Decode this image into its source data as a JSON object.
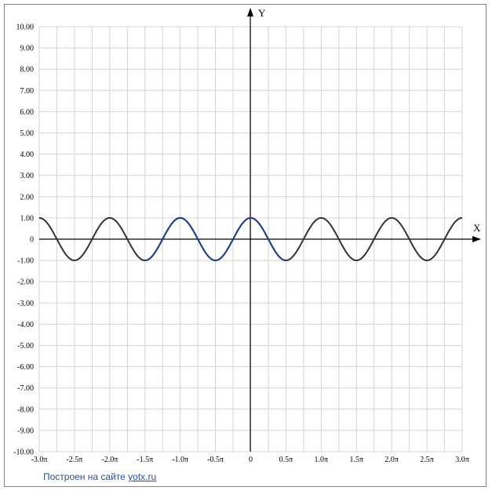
{
  "chart_data": {
    "type": "line",
    "title": "",
    "xlabel": "X",
    "ylabel": "Y",
    "xlim": [
      -3.0,
      3.0
    ],
    "ylim": [
      -10.0,
      10.0
    ],
    "x_unit": "π",
    "grid": true,
    "x_ticks": [
      {
        "value": -3.0,
        "label": "-3.0π"
      },
      {
        "value": -2.5,
        "label": "-2.5π"
      },
      {
        "value": -2.0,
        "label": "-2.0π"
      },
      {
        "value": -1.5,
        "label": "-1.5π"
      },
      {
        "value": -1.0,
        "label": "-1.0π"
      },
      {
        "value": -0.5,
        "label": "-0.5π"
      },
      {
        "value": 0,
        "label": "0"
      },
      {
        "value": 0.5,
        "label": "0.5π"
      },
      {
        "value": 1.0,
        "label": "1.0π"
      },
      {
        "value": 1.5,
        "label": "1.5π"
      },
      {
        "value": 2.0,
        "label": "2.0π"
      },
      {
        "value": 2.5,
        "label": "2.5π"
      },
      {
        "value": 3.0,
        "label": "3.0π"
      }
    ],
    "y_ticks": [
      {
        "value": 10,
        "label": "10.00"
      },
      {
        "value": 9,
        "label": "9.00"
      },
      {
        "value": 8,
        "label": "8.00"
      },
      {
        "value": 7,
        "label": "7.00"
      },
      {
        "value": 6,
        "label": "6.00"
      },
      {
        "value": 5,
        "label": "5.00"
      },
      {
        "value": 4,
        "label": "4.00"
      },
      {
        "value": 3,
        "label": "3.00"
      },
      {
        "value": 2,
        "label": "2.00"
      },
      {
        "value": 1,
        "label": "1.00"
      },
      {
        "value": 0,
        "label": "0"
      },
      {
        "value": -1,
        "label": "-1.00"
      },
      {
        "value": -2,
        "label": "-2.00"
      },
      {
        "value": -3,
        "label": "-3.00"
      },
      {
        "value": -4,
        "label": "-4.00"
      },
      {
        "value": -5,
        "label": "-5.00"
      },
      {
        "value": -6,
        "label": "-6.00"
      },
      {
        "value": -7,
        "label": "-7.00"
      },
      {
        "value": -8,
        "label": "-8.00"
      },
      {
        "value": -9,
        "label": "-9.00"
      },
      {
        "value": -10,
        "label": "-10.00"
      }
    ],
    "series": [
      {
        "color": "#333333",
        "x": [
          -3.0,
          -2.75,
          -2.5,
          -2.25,
          -2.0,
          -1.75,
          -1.5,
          -1.25,
          -1.0,
          -0.75,
          -0.5,
          -0.25,
          0,
          0.25,
          0.5,
          0.75,
          1.0,
          1.25,
          1.5,
          1.75,
          2.0,
          2.25,
          2.5,
          2.75,
          3.0
        ],
        "values": [
          1,
          0,
          -1,
          0,
          1,
          0,
          -1,
          0,
          1,
          0,
          -1,
          0,
          1,
          0,
          -1,
          0,
          1,
          0,
          -1,
          0,
          1,
          0,
          -1,
          0,
          1
        ]
      }
    ],
    "highlight_range": {
      "x": [
        -1.5,
        0.5
      ],
      "color": "#1f3f8f"
    }
  },
  "credit": {
    "text": "Построен на сайте ",
    "link": "yotx.ru"
  }
}
